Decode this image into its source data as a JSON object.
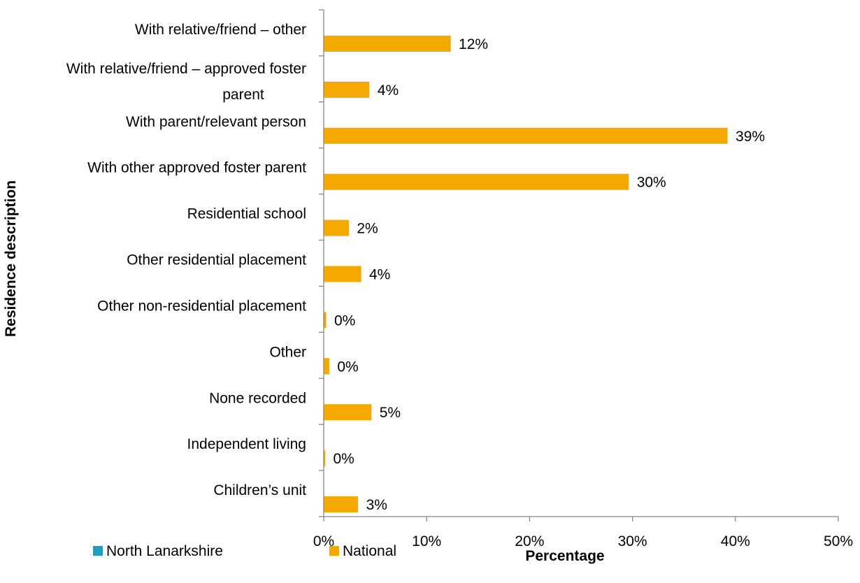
{
  "chart_data": {
    "type": "bar",
    "orientation": "horizontal",
    "categories": [
      "With relative/friend – other",
      "With relative/friend – approved foster parent",
      "With parent/relevant person",
      "With other approved foster parent",
      "Residential school",
      "Other residential placement",
      "Other non-residential placement",
      "Other",
      "None recorded",
      "Independent living",
      "Children’s unit"
    ],
    "category_lines": [
      [
        "With relative/friend – other"
      ],
      [
        "With relative/friend – approved foster",
        "parent"
      ],
      [
        "With parent/relevant person"
      ],
      [
        "With other approved foster parent"
      ],
      [
        "Residential school"
      ],
      [
        "Other residential placement"
      ],
      [
        "Other non-residential placement"
      ],
      [
        "Other"
      ],
      [
        "None recorded"
      ],
      [
        "Independent living"
      ],
      [
        "Children’s unit"
      ]
    ],
    "series": [
      {
        "name": "North Lanarkshire",
        "color": "#1f9fbf",
        "values": [
          0,
          0,
          0,
          0,
          0,
          0,
          0,
          0,
          0,
          0,
          0
        ]
      },
      {
        "name": "National",
        "color": "#f5a800",
        "values": [
          12.3,
          4.4,
          39.2,
          29.6,
          2.4,
          3.6,
          0.2,
          0.5,
          4.6,
          0.1,
          3.3
        ],
        "labels": [
          "12%",
          "4%",
          "39%",
          "30%",
          "2%",
          "4%",
          "0%",
          "0%",
          "5%",
          "0%",
          "3%"
        ]
      }
    ],
    "xlim": [
      0,
      50
    ],
    "x_ticks": [
      "0%",
      "10%",
      "20%",
      "30%",
      "40%",
      "50%"
    ],
    "x_tick_values": [
      0,
      10,
      20,
      30,
      40,
      50
    ],
    "xlabel": "Percentage",
    "ylabel": "Residence description",
    "legend_position": "bottom-left",
    "grid": false
  }
}
